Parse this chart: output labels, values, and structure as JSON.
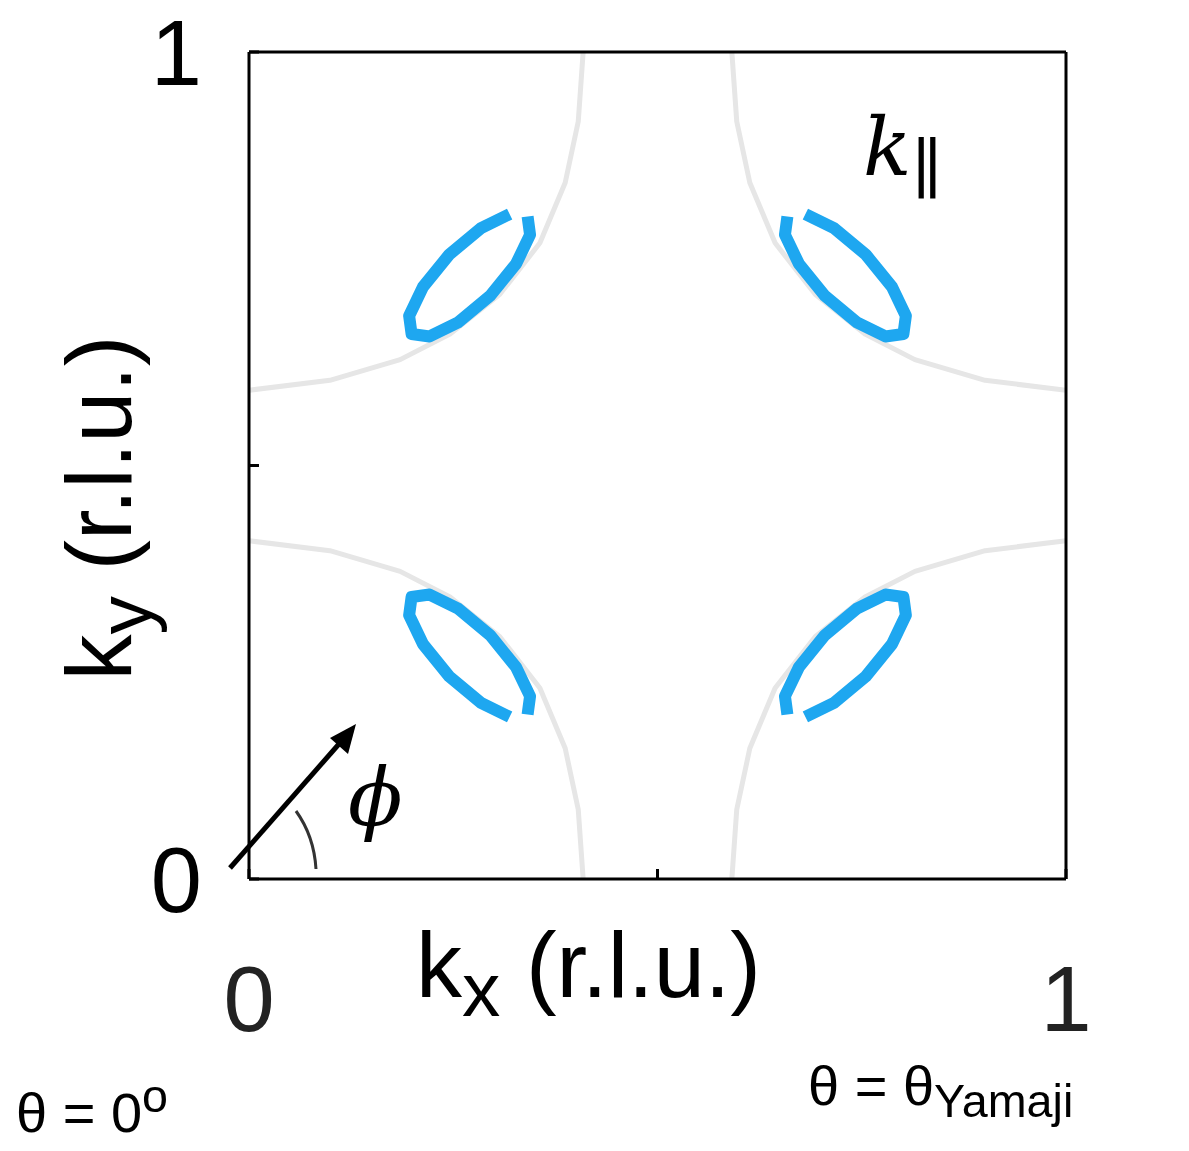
{
  "chart_data": {
    "type": "line",
    "xlabel": "k$_{x}$ (r.l.u.)",
    "ylabel": "k$_{y}$ (r.l.u.)",
    "xlim": [
      0,
      1
    ],
    "ylim": [
      0,
      1
    ],
    "xticks": [
      0,
      {
        "value": 0.5,
        "label": null
      },
      1
    ],
    "yticks": [
      0,
      {
        "value": 0.5,
        "label": null
      },
      1
    ],
    "marker": "none",
    "line_style": "solid",
    "annotations": [
      "k$_{∥}$",
      "ϕ",
      "θ = 0$^{o}$",
      "θ = θ$_{Yamaji}$"
    ],
    "series": [
      {
        "color": "#e6e6e6",
        "x": [
          0,
          0.099,
          0.185,
          0.246,
          0.307,
          0.356,
          0.387,
          0.403,
          0.409
        ],
        "values": [
          0.409,
          0.397,
          0.372,
          0.341,
          0.293,
          0.231,
          0.158,
          0.084,
          0
        ]
      },
      {
        "color": "#e6e6e6",
        "x": [
          1,
          0.901,
          0.815,
          0.754,
          0.693,
          0.644,
          0.613,
          0.597,
          0.591
        ],
        "values": [
          0.409,
          0.397,
          0.372,
          0.341,
          0.293,
          0.231,
          0.158,
          0.084,
          0
        ]
      },
      {
        "color": "#e6e6e6",
        "x": [
          0,
          0.099,
          0.185,
          0.246,
          0.307,
          0.356,
          0.387,
          0.403,
          0.409
        ],
        "values": [
          0.591,
          0.603,
          0.628,
          0.659,
          0.707,
          0.769,
          0.842,
          0.916,
          1
        ]
      },
      {
        "color": "#e6e6e6",
        "x": [
          1,
          0.901,
          0.815,
          0.754,
          0.693,
          0.644,
          0.613,
          0.597,
          0.591
        ],
        "values": [
          0.591,
          0.603,
          0.628,
          0.659,
          0.707,
          0.769,
          0.842,
          0.916,
          1
        ]
      },
      {
        "color": "#1ea7f0",
        "x": [
          0.341,
          0.344,
          0.327,
          0.295,
          0.256,
          0.221,
          0.199,
          0.196,
          0.213,
          0.245,
          0.284,
          0.319
        ],
        "values": [
          0.199,
          0.221,
          0.256,
          0.295,
          0.327,
          0.344,
          0.341,
          0.319,
          0.284,
          0.245,
          0.213,
          0.196
        ]
      },
      {
        "color": "#1ea7f0",
        "x": [
          0.659,
          0.656,
          0.673,
          0.705,
          0.744,
          0.779,
          0.801,
          0.804,
          0.787,
          0.755,
          0.716,
          0.681
        ],
        "values": [
          0.199,
          0.221,
          0.256,
          0.295,
          0.327,
          0.344,
          0.341,
          0.319,
          0.284,
          0.245,
          0.213,
          0.196
        ]
      },
      {
        "color": "#1ea7f0",
        "x": [
          0.341,
          0.344,
          0.327,
          0.295,
          0.256,
          0.221,
          0.199,
          0.196,
          0.213,
          0.245,
          0.284,
          0.319
        ],
        "values": [
          0.801,
          0.779,
          0.744,
          0.705,
          0.673,
          0.656,
          0.659,
          0.681,
          0.716,
          0.755,
          0.787,
          0.804
        ]
      },
      {
        "color": "#1ea7f0",
        "x": [
          0.659,
          0.656,
          0.673,
          0.705,
          0.744,
          0.779,
          0.801,
          0.804,
          0.787,
          0.755,
          0.716,
          0.681
        ],
        "values": [
          0.801,
          0.779,
          0.744,
          0.705,
          0.673,
          0.656,
          0.659,
          0.681,
          0.716,
          0.755,
          0.787,
          0.804
        ]
      }
    ]
  }
}
